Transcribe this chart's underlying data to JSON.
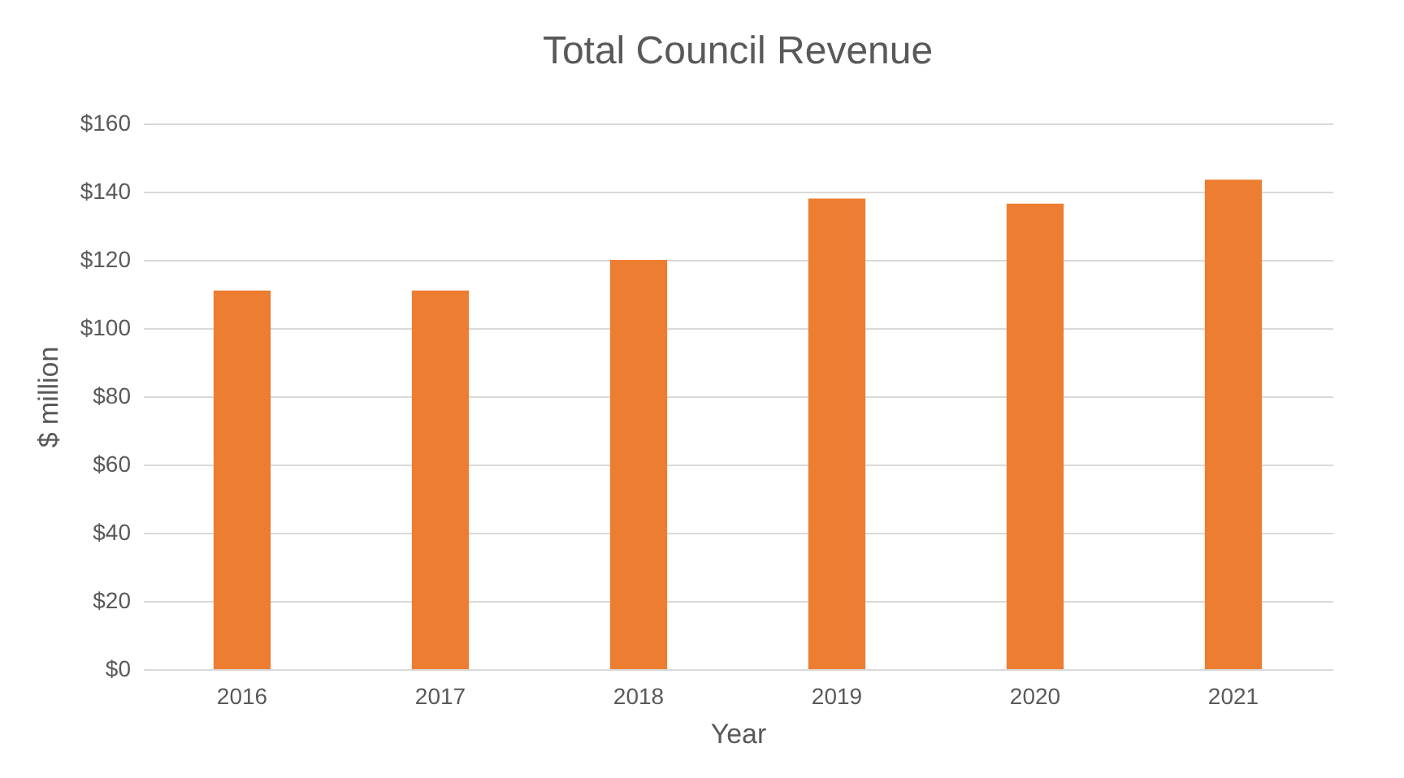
{
  "chart_data": {
    "type": "bar",
    "title": "Total Council Revenue",
    "xlabel": "Year",
    "ylabel": "$ million",
    "categories": [
      "2016",
      "2017",
      "2018",
      "2019",
      "2020",
      "2021"
    ],
    "values": [
      111,
      111,
      120,
      138,
      136.5,
      143.5
    ],
    "color": "#ed7d31",
    "ylim": [
      0,
      160
    ],
    "yticks": [
      {
        "value": 0,
        "label": "$0"
      },
      {
        "value": 20,
        "label": "$20"
      },
      {
        "value": 40,
        "label": "$40"
      },
      {
        "value": 60,
        "label": "$60"
      },
      {
        "value": 80,
        "label": "$80"
      },
      {
        "value": 100,
        "label": "$100"
      },
      {
        "value": 120,
        "label": "$120"
      },
      {
        "value": 140,
        "label": "$140"
      },
      {
        "value": 160,
        "label": "$160"
      }
    ],
    "grid": "y"
  }
}
